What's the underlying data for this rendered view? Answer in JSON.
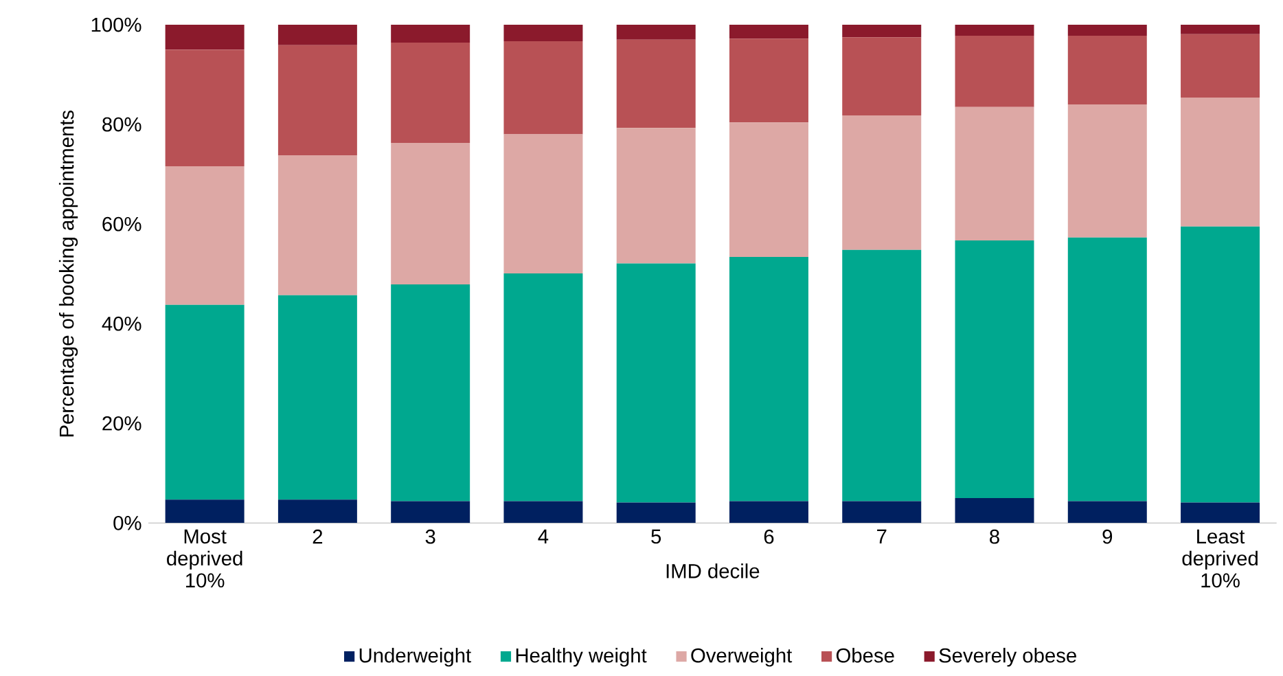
{
  "chart_data": {
    "type": "bar",
    "stacked": true,
    "xlabel": "IMD decile",
    "ylabel": "Percentage of booking appointments",
    "categories": [
      "Most deprived 10%",
      "2",
      "3",
      "4",
      "5",
      "6",
      "7",
      "8",
      "9",
      "Least deprived 10%"
    ],
    "series": [
      {
        "name": "Underweight",
        "color": "#002060",
        "values": [
          4.7,
          4.7,
          4.4,
          4.4,
          4.1,
          4.4,
          4.4,
          5.0,
          4.4,
          4.1
        ]
      },
      {
        "name": "Healthy weight",
        "color": "#00a88f",
        "values": [
          39.1,
          41.0,
          43.5,
          45.7,
          48.0,
          49.0,
          50.4,
          51.7,
          52.9,
          55.4
        ]
      },
      {
        "name": "Overweight",
        "color": "#dda8a5",
        "values": [
          27.8,
          28.1,
          28.4,
          27.9,
          27.2,
          27.0,
          27.0,
          26.8,
          26.7,
          25.9
        ]
      },
      {
        "name": "Obese",
        "color": "#b85155",
        "values": [
          23.4,
          22.1,
          20.1,
          18.7,
          17.7,
          16.8,
          15.7,
          14.3,
          13.8,
          12.7
        ]
      },
      {
        "name": "Severely obese",
        "color": "#8b1a2c",
        "values": [
          5.0,
          4.1,
          3.6,
          3.3,
          3.0,
          2.8,
          2.5,
          2.2,
          2.2,
          1.9
        ]
      }
    ],
    "ylim": [
      0,
      100
    ],
    "yticks": [
      {
        "value": 0,
        "label": "0%"
      },
      {
        "value": 20,
        "label": "20%"
      },
      {
        "value": 40,
        "label": "40%"
      },
      {
        "value": 60,
        "label": "60%"
      },
      {
        "value": 80,
        "label": "80%"
      },
      {
        "value": 100,
        "label": "100%"
      }
    ],
    "grid": false,
    "legend": "bottom"
  }
}
